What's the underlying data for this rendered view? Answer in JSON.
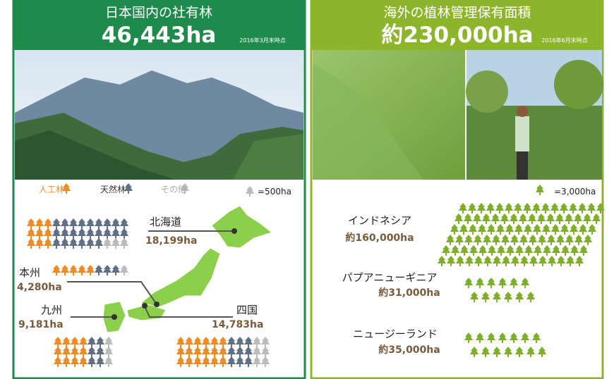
{
  "domestic": {
    "title": "日本国内の社有林",
    "total": "46,443ha",
    "as_of": "2016年3月末時点",
    "legend": [
      "人工林",
      "天然林",
      "その他"
    ],
    "unit": "=500ha",
    "regions": [
      {
        "name": "北海道",
        "area": "18,199ha"
      },
      {
        "name": "本州",
        "area": "4,280ha"
      },
      {
        "name": "九州",
        "area": "9,181ha"
      },
      {
        "name": "四国",
        "area": "14,783ha"
      }
    ]
  },
  "overseas": {
    "title": "海外の植林管理保有面積",
    "total": "約230,000ha",
    "as_of": "2016年6月末時点",
    "unit": "=3,000ha",
    "countries": [
      {
        "name": "インドネシア",
        "area": "約160,000ha"
      },
      {
        "name": "パプアニューギニア",
        "area": "約31,000ha"
      },
      {
        "name": "ニュージーランド",
        "area": "約35,000ha"
      }
    ]
  }
}
